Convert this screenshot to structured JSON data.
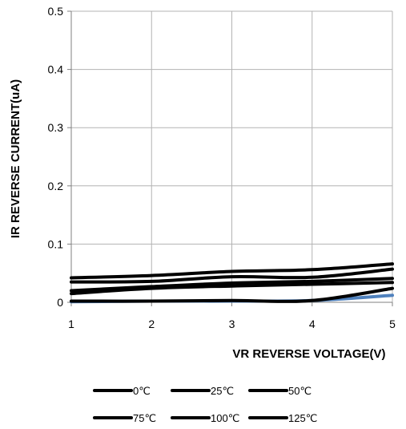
{
  "chart_data": {
    "type": "line",
    "title": "",
    "xlabel": "VR REVERSE VOLTAGE(V)",
    "ylabel": "IR REVERSE CURRENT(uA)",
    "xlim": [
      1,
      5
    ],
    "ylim": [
      0,
      0.5
    ],
    "x_ticks": [
      "1",
      "2",
      "3",
      "4",
      "5"
    ],
    "y_ticks": [
      "0",
      "0.1",
      "0.2",
      "0.3",
      "0.4",
      "0.5"
    ],
    "grid": true,
    "legend_position": "bottom",
    "x": [
      1,
      2,
      3,
      4,
      5
    ],
    "series": [
      {
        "name": "0℃",
        "color": "#4f81bd",
        "values": [
          0.001,
          0.002,
          0.002,
          0.003,
          0.012
        ]
      },
      {
        "name": "25℃",
        "color": "#000000",
        "values": [
          0.002,
          0.002,
          0.003,
          0.003,
          0.024
        ]
      },
      {
        "name": "50℃",
        "color": "#000000",
        "values": [
          0.015,
          0.024,
          0.028,
          0.031,
          0.034
        ]
      },
      {
        "name": "75℃",
        "color": "#000000",
        "values": [
          0.02,
          0.027,
          0.033,
          0.036,
          0.041
        ]
      },
      {
        "name": "100℃",
        "color": "#000000",
        "values": [
          0.035,
          0.036,
          0.044,
          0.043,
          0.057
        ]
      },
      {
        "name": "125℃",
        "color": "#000000",
        "values": [
          0.042,
          0.046,
          0.053,
          0.056,
          0.066
        ]
      }
    ]
  }
}
